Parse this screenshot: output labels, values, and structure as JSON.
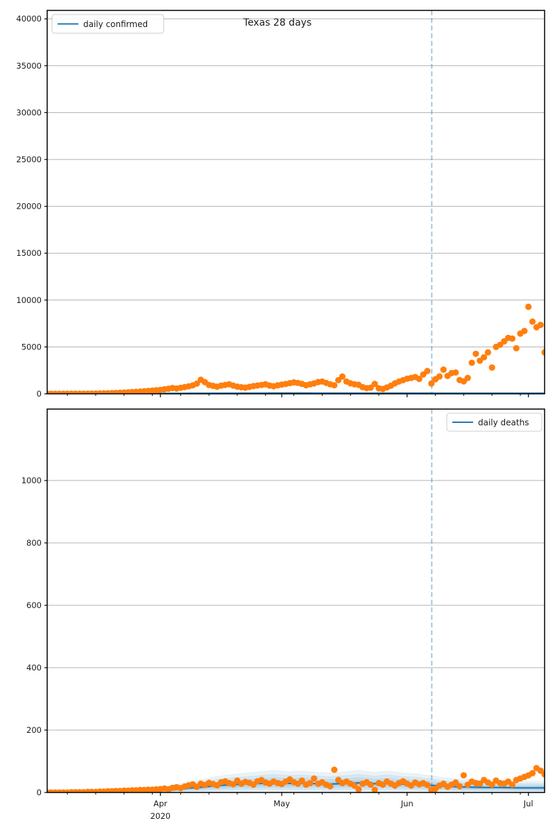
{
  "figure": {
    "title": "Texas 28 days",
    "background": "#ffffff"
  },
  "colors": {
    "actual_scatter": "#ff7f0e",
    "prediction_line": "#1f77b4",
    "confidence_band": "#1f77b4",
    "forecast_vline": "#1f77b4",
    "grid": "#b0b0b0",
    "spine": "#000000",
    "legend_border": "#cccccc"
  },
  "xaxis": {
    "month_labels": [
      "Apr",
      "May",
      "Jun",
      "Jul"
    ],
    "year_label": "2020",
    "month_tick_days": [
      31,
      61,
      92,
      122
    ],
    "minor_tick_days": [
      8,
      15,
      22,
      29,
      36,
      43,
      50,
      57,
      64,
      71,
      78,
      85,
      99,
      106,
      113,
      120
    ],
    "xlim_days": [
      3,
      126
    ],
    "x_unit": "days since 2020-03-01"
  },
  "chart_data": [
    {
      "type": "scatter",
      "title": "Texas 28 days",
      "legend": {
        "label": "daily confirmed",
        "position": "upper-left"
      },
      "ylim": [
        0,
        40900
      ],
      "yticks": [
        0,
        5000,
        10000,
        15000,
        20000,
        25000,
        30000,
        35000,
        40000
      ],
      "grid": "horizontal",
      "vline_day": 98.1,
      "scatter": {
        "name": "actual daily confirmed",
        "day_start": 3,
        "values": [
          1,
          1,
          2,
          2,
          3,
          4,
          5,
          7,
          9,
          12,
          16,
          21,
          27,
          35,
          45,
          58,
          72,
          90,
          110,
          135,
          160,
          185,
          215,
          245,
          275,
          310,
          345,
          380,
          420,
          480,
          550,
          620,
          560,
          640,
          720,
          800,
          900,
          1090,
          1500,
          1250,
          950,
          850,
          760,
          870,
          950,
          1020,
          880,
          770,
          700,
          660,
          740,
          820,
          890,
          950,
          1010,
          880,
          810,
          910,
          980,
          1050,
          1140,
          1220,
          1160,
          1060,
          920,
          1010,
          1110,
          1260,
          1310,
          1160,
          1010,
          910,
          1460,
          1840,
          1310,
          1120,
          1010,
          960,
          710,
          610,
          660,
          1060,
          590,
          520,
          680,
          860,
          1120,
          1310,
          1460,
          1610,
          1690,
          1790,
          1590,
          2060,
          2430,
          1100,
          1550,
          1850,
          2580,
          1910,
          2210,
          2280,
          1470,
          1330,
          1690,
          3310,
          4270,
          3530,
          3900,
          4420,
          2800,
          5000,
          5230,
          5590,
          5960,
          5890,
          4860,
          6430,
          6700,
          9280,
          7700,
          7100,
          7350,
          4420
        ]
      },
      "prediction": {
        "name": "daily confirmed (model)",
        "days": [
          3,
          20,
          40,
          60,
          80,
          100,
          126
        ],
        "values": [
          2,
          15,
          45,
          65,
          60,
          55,
          50
        ]
      },
      "band_layers": [
        {
          "lo": 0.05,
          "hi": 2.5,
          "off": 60
        },
        {
          "lo": 0.3,
          "hi": 1.9,
          "off": 30
        },
        {
          "lo": 0.5,
          "hi": 1.5,
          "off": 15
        },
        {
          "lo": 0.7,
          "hi": 1.25,
          "off": 8
        }
      ]
    },
    {
      "type": "scatter",
      "title": "",
      "legend": {
        "label": "daily deaths",
        "position": "upper-right"
      },
      "ylim": [
        0,
        1229
      ],
      "yticks": [
        0,
        200,
        400,
        600,
        800,
        1000
      ],
      "grid": "horizontal",
      "vline_day": 98.1,
      "scatter": {
        "name": "actual daily deaths",
        "day_start": 3,
        "values": [
          0,
          0,
          0,
          0,
          0,
          0,
          1,
          1,
          1,
          1,
          2,
          2,
          2,
          3,
          3,
          4,
          4,
          5,
          5,
          6,
          6,
          7,
          7,
          8,
          8,
          9,
          9,
          10,
          11,
          13,
          10,
          15,
          17,
          14,
          19,
          23,
          26,
          18,
          28,
          24,
          31,
          27,
          23,
          33,
          36,
          30,
          26,
          38,
          28,
          34,
          31,
          25,
          36,
          40,
          32,
          28,
          35,
          30,
          27,
          35,
          42,
          33,
          28,
          38,
          25,
          30,
          45,
          28,
          33,
          25,
          20,
          73,
          40,
          30,
          35,
          28,
          22,
          10,
          28,
          33,
          25,
          8,
          30,
          25,
          35,
          28,
          22,
          30,
          36,
          28,
          22,
          32,
          26,
          30,
          24,
          8,
          12,
          22,
          28,
          18,
          25,
          32,
          20,
          55,
          25,
          35,
          30,
          28,
          40,
          32,
          25,
          38,
          30,
          28,
          35,
          25,
          40,
          45,
          50,
          55,
          62,
          78,
          70,
          58
        ]
      },
      "prediction": {
        "name": "daily deaths (model)",
        "days": [
          3,
          10,
          17,
          24,
          31,
          35,
          38,
          42,
          45,
          49,
          52,
          56,
          59,
          63,
          66,
          70,
          73,
          77,
          80,
          84,
          87,
          91,
          94,
          98,
          101,
          105,
          108,
          112,
          115,
          119,
          122,
          126
        ],
        "values": [
          0,
          0.3,
          1,
          2.5,
          6,
          10,
          14,
          18,
          22,
          25,
          27,
          29,
          31,
          29,
          30,
          28,
          27,
          29,
          31,
          28,
          30,
          27,
          26,
          23,
          20,
          18,
          17,
          16,
          16,
          15,
          15,
          15
        ]
      },
      "band_layers": [
        {
          "lo": 0.08,
          "hi": 2.15,
          "off": 4
        },
        {
          "lo": 0.3,
          "hi": 1.8,
          "off": 2
        },
        {
          "lo": 0.52,
          "hi": 1.5,
          "off": 1
        },
        {
          "lo": 0.72,
          "hi": 1.22,
          "off": 0.5
        }
      ]
    }
  ]
}
